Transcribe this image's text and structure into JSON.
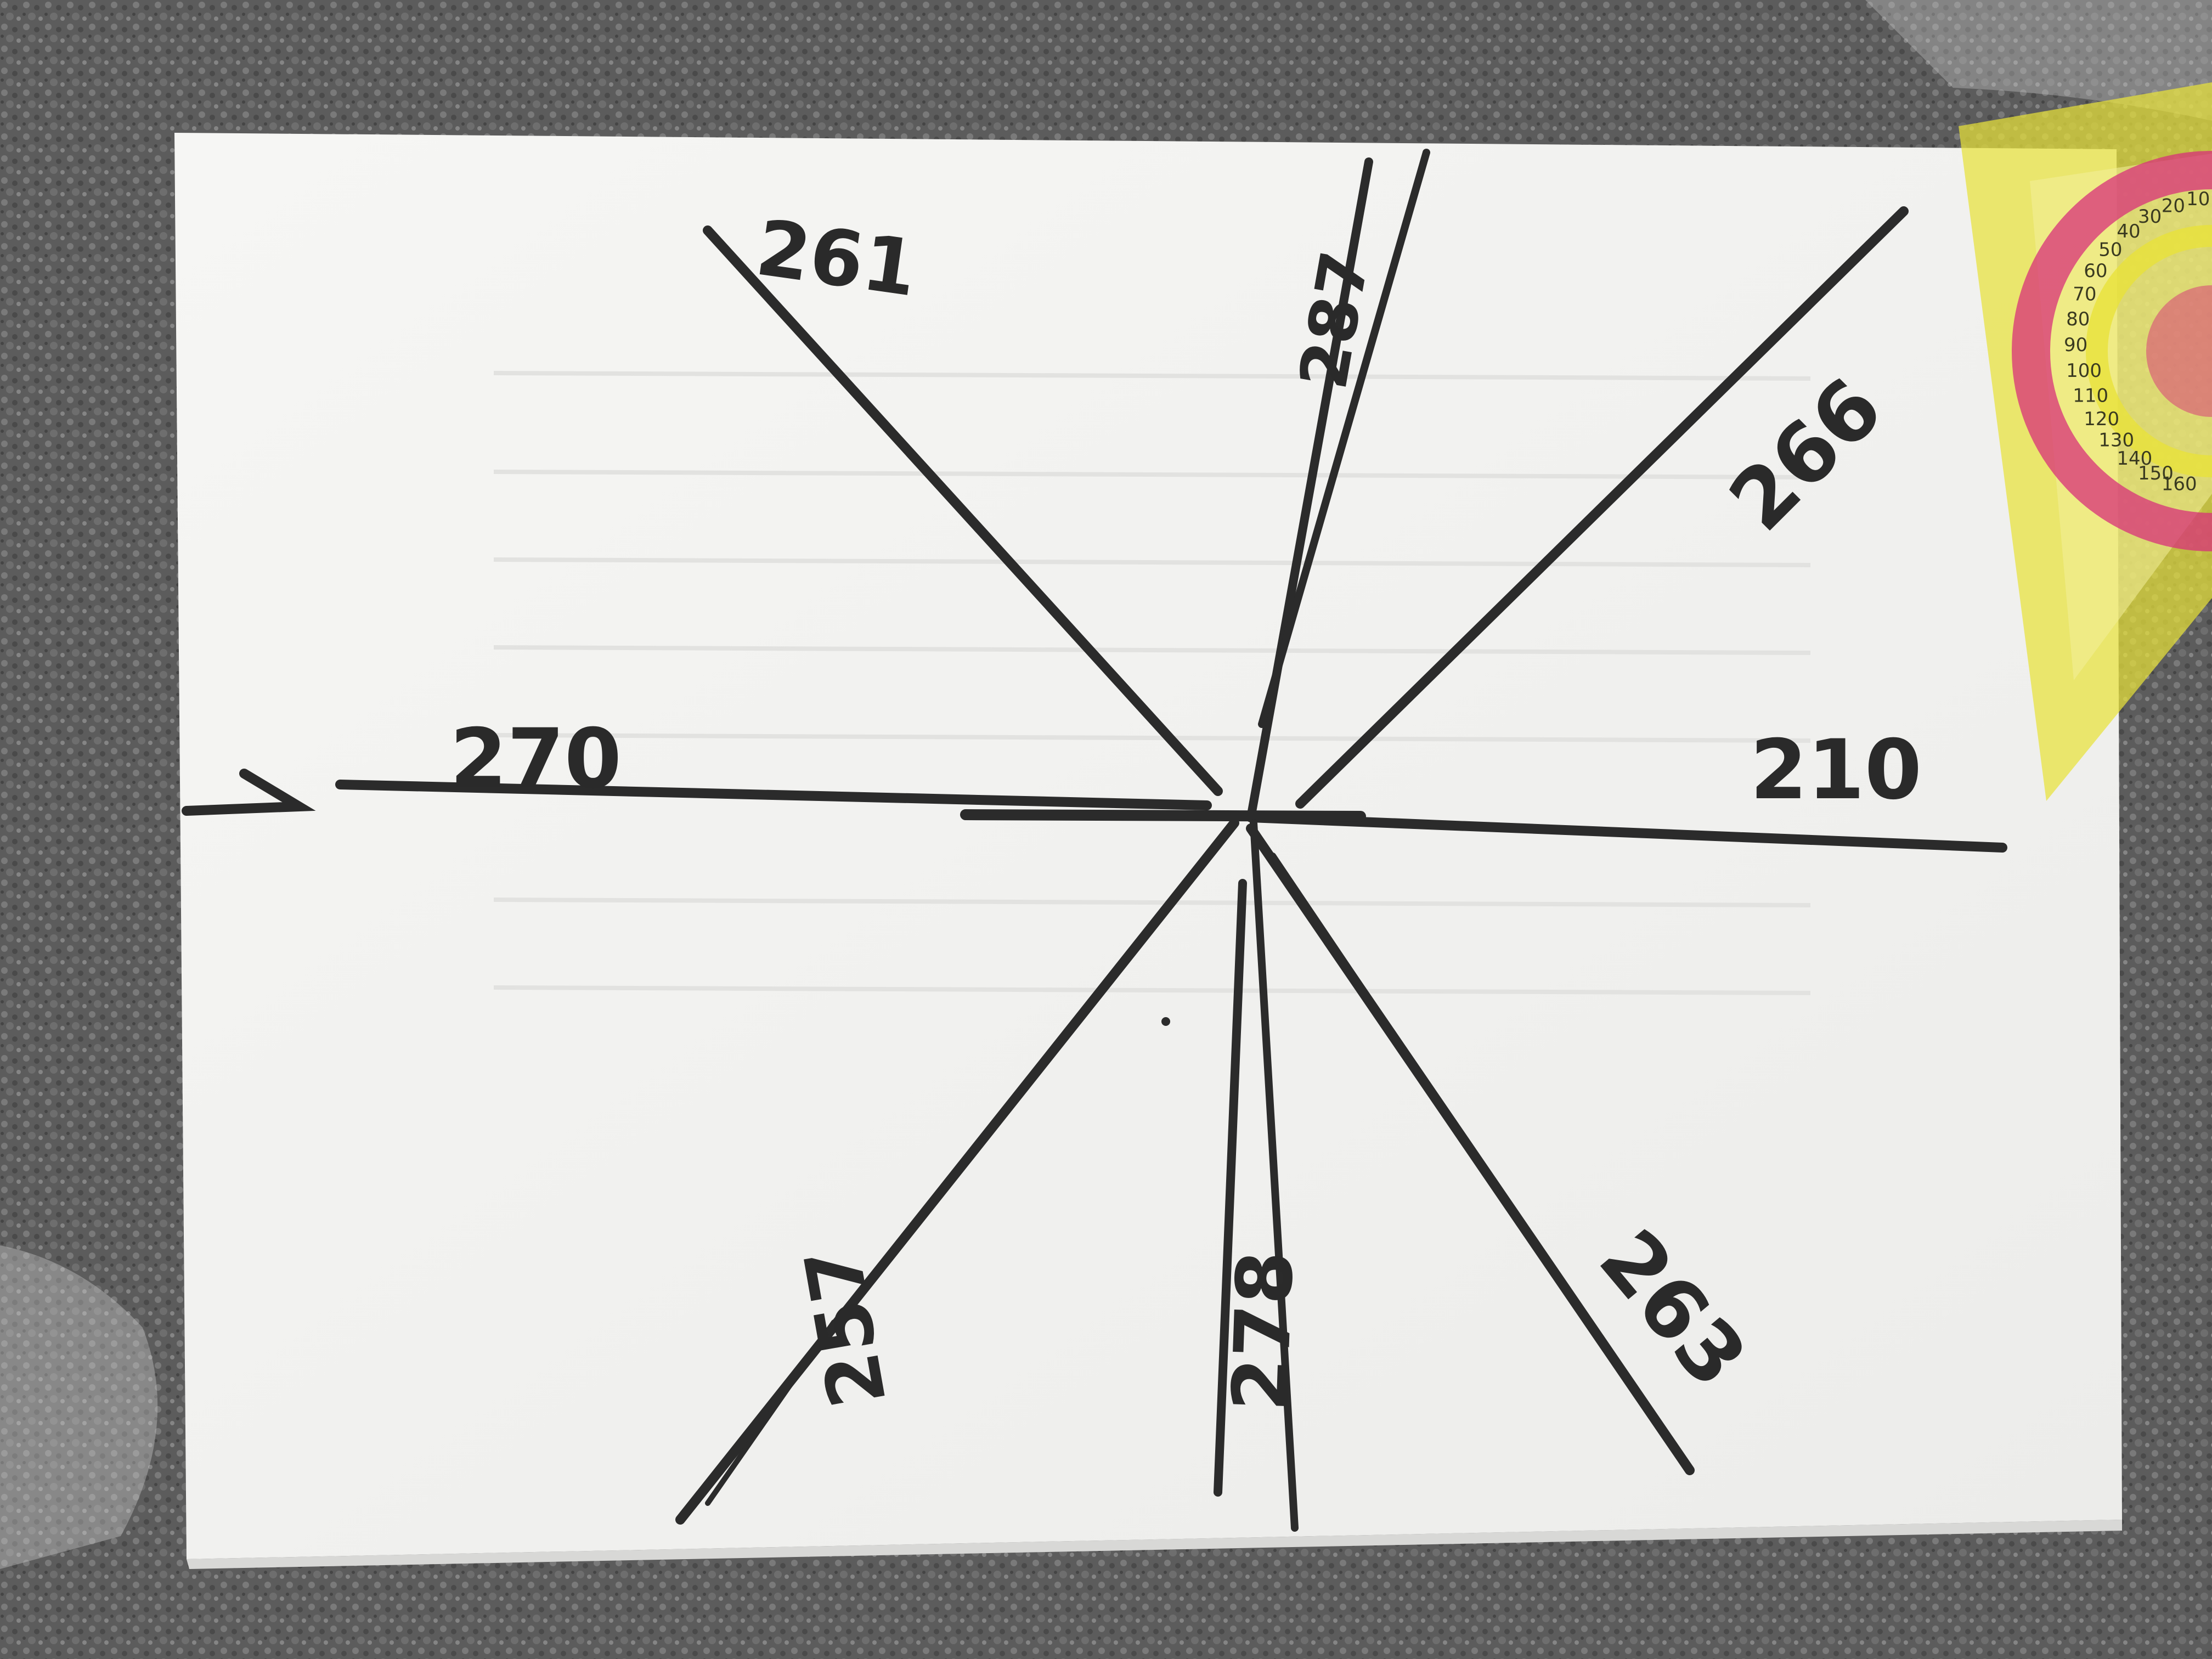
{
  "photo": {
    "subject": "hand-drawn lines on paper with a protractor",
    "colors": {
      "carpet": "#5f5f5f",
      "paper": "#f7f7f5",
      "ink": "#2b2b2b",
      "protractor_yellow": "#e8e23a",
      "protractor_pink": "#d8307a"
    }
  },
  "labels": {
    "l270": "270",
    "l210": "210",
    "l261": "261",
    "l287": "287",
    "l266": "266",
    "l263": "263",
    "l278": "278",
    "l257": "257"
  },
  "arrow": ">",
  "protractor": {
    "ticks": [
      "10",
      "20",
      "30",
      "40",
      "50",
      "60",
      "70",
      "80",
      "90",
      "100",
      "110",
      "120",
      "130",
      "140",
      "150",
      "160"
    ]
  }
}
